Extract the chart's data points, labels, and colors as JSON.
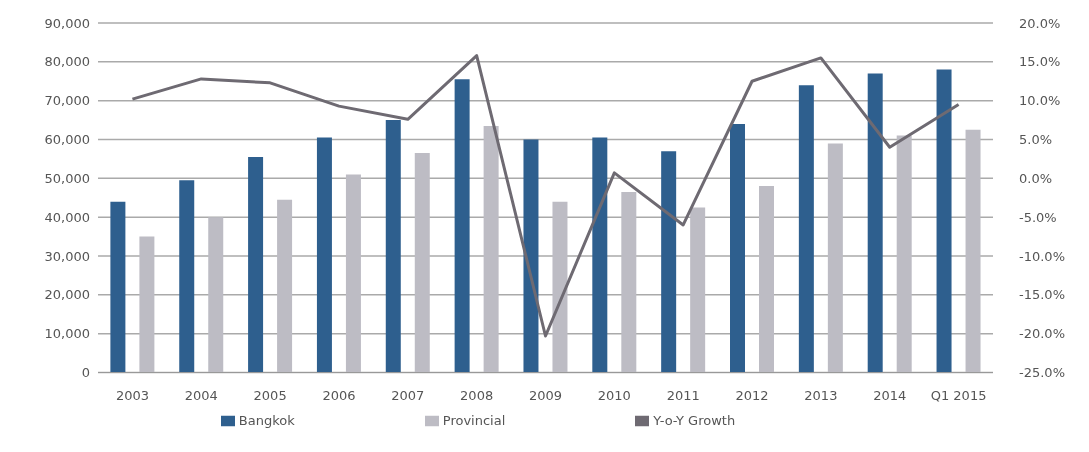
{
  "chart_data": {
    "type": "bar",
    "categories": [
      "2003",
      "2004",
      "2005",
      "2006",
      "2007",
      "2008",
      "2009",
      "2010",
      "2011",
      "2012",
      "2013",
      "2014",
      "Q1 2015"
    ],
    "series": [
      {
        "name": "Bangkok",
        "color": "#2e5f8e",
        "values": [
          44000,
          49500,
          55500,
          60500,
          65000,
          75500,
          60000,
          60500,
          57000,
          64000,
          74000,
          77000,
          78000
        ]
      },
      {
        "name": "Provincial",
        "color": "#bdbcc4",
        "values": [
          35000,
          40000,
          44500,
          51000,
          56500,
          63500,
          44000,
          46500,
          42500,
          48000,
          59000,
          61000,
          62500
        ]
      },
      {
        "name": "Y-o-Y Growth",
        "type": "line",
        "axis": "y2",
        "color": "#6e6a72",
        "values": [
          10.2,
          12.8,
          12.3,
          9.3,
          7.6,
          15.8,
          -20.3,
          0.7,
          -6.0,
          12.5,
          15.5,
          4.0,
          9.5
        ]
      }
    ],
    "ylim": [
      0,
      90000
    ],
    "yticks": [
      {
        "value": 0,
        "label": "0"
      },
      {
        "value": 10000,
        "label": "10,000"
      },
      {
        "value": 20000,
        "label": "20,000"
      },
      {
        "value": 30000,
        "label": "30,000"
      },
      {
        "value": 40000,
        "label": "40,000"
      },
      {
        "value": 50000,
        "label": "50,000"
      },
      {
        "value": 60000,
        "label": "60,000"
      },
      {
        "value": 70000,
        "label": "70,000"
      },
      {
        "value": 80000,
        "label": "80,000"
      },
      {
        "value": 90000,
        "label": "90,000"
      }
    ],
    "y2lim": [
      -25,
      20
    ],
    "y2ticks": [
      {
        "value": -25,
        "label": "-25.0%"
      },
      {
        "value": -20,
        "label": "-20.0%"
      },
      {
        "value": -15,
        "label": "-15.0%"
      },
      {
        "value": -10,
        "label": "-10.0%"
      },
      {
        "value": -5,
        "label": "-5.0%"
      },
      {
        "value": 0,
        "label": "0.0%"
      },
      {
        "value": 5,
        "label": "5.0%"
      },
      {
        "value": 10,
        "label": "10.0%"
      },
      {
        "value": 15,
        "label": "15.0%"
      },
      {
        "value": 20,
        "label": "20.0%"
      }
    ],
    "grid": "y",
    "legend": "bottom",
    "marker": "none",
    "line_style": "solid"
  }
}
